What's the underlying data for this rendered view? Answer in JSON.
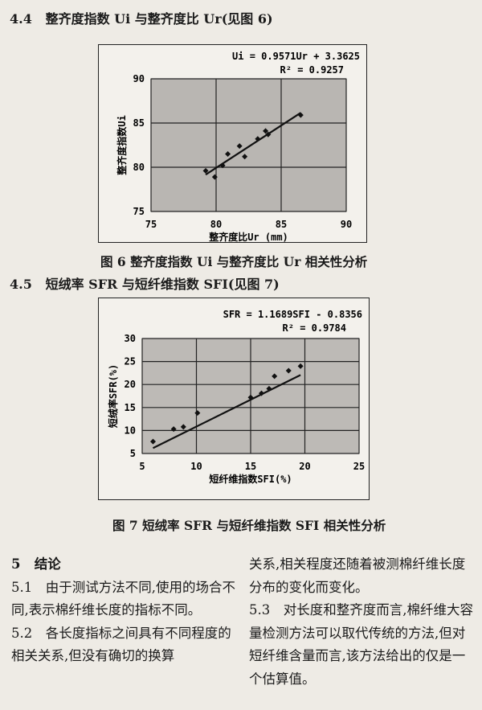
{
  "section_4_4": {
    "number": "4.4",
    "title": "整齐度指数 Ui 与整齐度比 Ur(见图 6)"
  },
  "figure6_caption": "图 6   整齐度指数 Ui 与整齐度比 Ur 相关性分析",
  "section_4_5": {
    "number": "4.5",
    "title": "短绒率 SFR 与短纤维指数 SFI(见图 7)"
  },
  "figure7_caption": "图 7   短绒率 SFR 与短纤维指数 SFI 相关性分析",
  "chart_data": [
    {
      "type": "scatter",
      "title": "",
      "equation": "Ui = 0.9571Ur + 3.3625",
      "r_squared": "R² = 0.9257",
      "xlabel": "整齐度比Ur (mm)",
      "ylabel": "整齐度指数Ui",
      "xlim": [
        75,
        90
      ],
      "ylim": [
        75,
        90
      ],
      "xticks": [
        75,
        80,
        85,
        90
      ],
      "yticks": [
        75,
        80,
        85,
        90
      ],
      "grid": true,
      "points": [
        [
          79.2,
          79.6
        ],
        [
          79.9,
          78.9
        ],
        [
          80.5,
          80.2
        ],
        [
          80.9,
          81.5
        ],
        [
          81.8,
          82.4
        ],
        [
          82.2,
          81.2
        ],
        [
          83.2,
          83.2
        ],
        [
          83.8,
          84.1
        ],
        [
          84.0,
          83.7
        ],
        [
          86.5,
          85.9
        ]
      ],
      "trendline": {
        "slope": 0.9571,
        "intercept": 3.3625,
        "x_range": [
          79.2,
          86.5
        ]
      },
      "colors": {
        "plot_bg": "#b9b6b2",
        "marks": "#111111"
      }
    },
    {
      "type": "scatter",
      "title": "",
      "equation": "SFR = 1.1689SFI - 0.8356",
      "r_squared": "R² = 0.9784",
      "xlabel": "短纤维指数SFI(%)",
      "ylabel": "短绒率SFR(%)",
      "xlim": [
        5,
        25
      ],
      "ylim": [
        5,
        30
      ],
      "xticks": [
        5,
        10,
        15,
        20,
        25
      ],
      "yticks": [
        5,
        10,
        15,
        20,
        25,
        30
      ],
      "grid": true,
      "points": [
        [
          6.0,
          7.6
        ],
        [
          7.9,
          10.3
        ],
        [
          8.8,
          10.8
        ],
        [
          10.1,
          13.8
        ],
        [
          15.0,
          17.2
        ],
        [
          16.0,
          18.1
        ],
        [
          16.7,
          19.1
        ],
        [
          17.2,
          21.8
        ],
        [
          18.5,
          23.0
        ],
        [
          19.6,
          24.0
        ]
      ],
      "trendline": {
        "slope": 1.1689,
        "intercept": -0.8356,
        "x_range": [
          6.0,
          19.6
        ]
      },
      "colors": {
        "plot_bg": "#bdbab6",
        "marks": "#111111"
      }
    }
  ],
  "conclusion": {
    "heading_number": "5",
    "heading": "结论",
    "left": [
      "5.1　由于测试方法不同,使用的场合不同,表示棉纤维长度的指标不同。",
      "5.2　各长度指标之间具有不同程度的相关关系,但没有确切的换算"
    ],
    "right": [
      "关系,相关程度还随着被测棉纤维长度分布的变化而变化。",
      "5.3　对长度和整齐度而言,棉纤维大容量检测方法可以取代传统的方法,但对短纤维含量而言,该方法给出的仅是一个估算值。"
    ]
  }
}
